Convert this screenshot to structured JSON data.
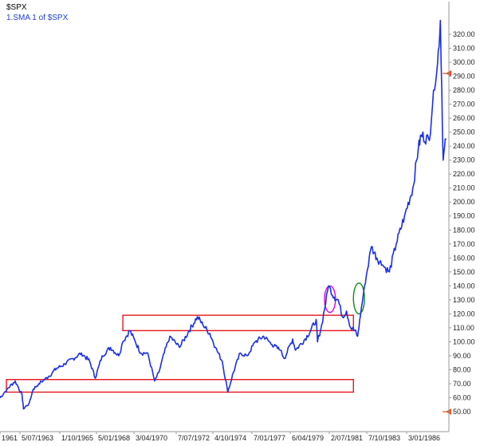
{
  "header": {
    "symbol": "$SPX",
    "indicator": "1.SMA 1  of $SPX"
  },
  "colors": {
    "series": "#1a2fe6",
    "box": "#e8141c",
    "circle_magenta": "#e000e0",
    "circle_green": "#0a8a16",
    "marker": "#e8501c",
    "axis": "#9a9a9a",
    "grid": "#e4e4e4"
  },
  "chart_data": {
    "type": "line",
    "series": [
      {
        "name": "$SPX",
        "x": [
          "1961-01",
          "1961-06",
          "1961-12",
          "1962-05",
          "1962-06",
          "1962-10",
          "1963-01",
          "1963-05",
          "1963-12",
          "1964-06",
          "1964-12",
          "1965-06",
          "1965-12",
          "1966-06",
          "1966-10",
          "1967-03",
          "1967-09",
          "1968-03",
          "1968-06",
          "1968-11",
          "1969-03",
          "1969-07",
          "1969-12",
          "1970-05",
          "1970-08",
          "1970-12",
          "1971-04",
          "1971-11",
          "1972-06",
          "1972-12",
          "1973-04",
          "1973-09",
          "1974-01",
          "1974-06",
          "1974-10",
          "1975-02",
          "1975-07",
          "1975-12",
          "1976-06",
          "1976-12",
          "1977-06",
          "1977-12",
          "1978-03",
          "1978-09",
          "1978-11",
          "1979-06",
          "1979-10",
          "1980-02",
          "1980-03",
          "1980-06",
          "1980-11",
          "1981-03",
          "1981-06",
          "1981-09",
          "1981-12",
          "1982-03",
          "1982-06",
          "1982-08",
          "1982-10",
          "1983-01",
          "1983-06",
          "1983-10",
          "1984-02",
          "1984-07",
          "1984-12",
          "1985-06",
          "1985-12",
          "1986-04",
          "1986-06",
          "1986-12",
          "1987-03",
          "1987-06",
          "1987-08",
          "1987-10",
          "1987-12"
        ],
        "values": [
          60,
          66,
          72,
          62,
          52,
          56,
          66,
          70,
          75,
          81,
          84,
          88,
          92,
          86,
          74,
          90,
          96,
          90,
          100,
          108,
          100,
          92,
          92,
          72,
          78,
          92,
          104,
          96,
          108,
          118,
          112,
          106,
          96,
          86,
          64,
          78,
          92,
          90,
          100,
          104,
          98,
          94,
          88,
          102,
          94,
          102,
          108,
          116,
          100,
          112,
          140,
          132,
          130,
          118,
          122,
          110,
          108,
          104,
          118,
          140,
          168,
          160,
          155,
          150,
          170,
          190,
          210,
          238,
          248,
          244,
          280,
          300,
          330,
          230,
          245
        ]
      }
    ],
    "x_tick_labels": [
      "1961",
      "5/07/1963",
      "1/10/1965",
      "5/01/1968",
      "3/04/1970",
      "7/07/1972",
      "4/10/1974",
      "7/01/1977",
      "6/04/1979",
      "2/07/1981",
      "7/10/1983",
      "3/01/1986"
    ],
    "y_tick_labels": [
      "50.00",
      "60.00",
      "70.00",
      "80.00",
      "90.00",
      "100.00",
      "110.00",
      "120.00",
      "130.00",
      "140.00",
      "150.00",
      "160.00",
      "170.00",
      "180.00",
      "190.00",
      "200.00",
      "210.00",
      "220.00",
      "230.00",
      "240.00",
      "250.00",
      "260.00",
      "270.00",
      "280.00",
      "290.00",
      "300.00",
      "310.00",
      "320.00"
    ],
    "ylim": [
      48,
      330
    ],
    "y_axis_side": "right",
    "grid": false,
    "annotations": [
      {
        "shape": "rectangle",
        "color": "red",
        "x_range": [
          "1968-06",
          "1982-05"
        ],
        "y_range": [
          108,
          119
        ]
      },
      {
        "shape": "rectangle",
        "color": "red",
        "x_range": [
          "1961-01",
          "1982-05"
        ],
        "y_range": [
          64,
          73
        ]
      },
      {
        "shape": "ellipse",
        "color": "magenta",
        "x_range": [
          "1980-08",
          "1981-04"
        ],
        "y_range": [
          121,
          140
        ]
      },
      {
        "shape": "ellipse",
        "color": "green",
        "x_range": [
          "1982-05",
          "1983-01"
        ],
        "y_range": [
          120,
          142
        ]
      },
      {
        "shape": "arrow-marker",
        "color": "orange",
        "y": 292
      },
      {
        "shape": "arrow-marker",
        "color": "orange",
        "y": 50
      }
    ]
  }
}
